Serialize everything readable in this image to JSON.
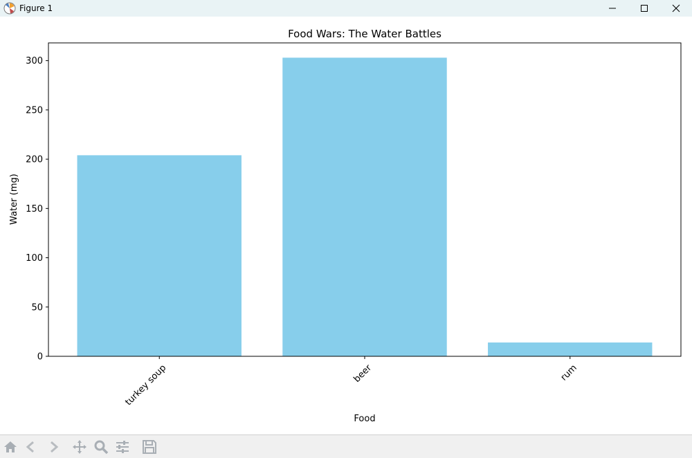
{
  "window": {
    "title": "Figure 1"
  },
  "toolbar": {
    "tools": [
      "home-icon",
      "back-icon",
      "forward-icon",
      "pan-icon",
      "zoom-icon",
      "configure-icon",
      "save-icon"
    ]
  },
  "colors": {
    "bar": "#87ceeb",
    "titlebar": "#e9f3f5",
    "toolbar": "#f0f0f0"
  },
  "chart_data": {
    "type": "bar",
    "title": "Food Wars: The Water Battles",
    "xlabel": "Food",
    "ylabel": "Water (mg)",
    "categories": [
      "turkey soup",
      "beer",
      "rum"
    ],
    "values": [
      204,
      303,
      14
    ],
    "ylim": [
      0,
      318
    ],
    "yticks": [
      0,
      50,
      100,
      150,
      200,
      250,
      300
    ],
    "xtick_rotation": 45,
    "grid": false,
    "legend": false
  }
}
